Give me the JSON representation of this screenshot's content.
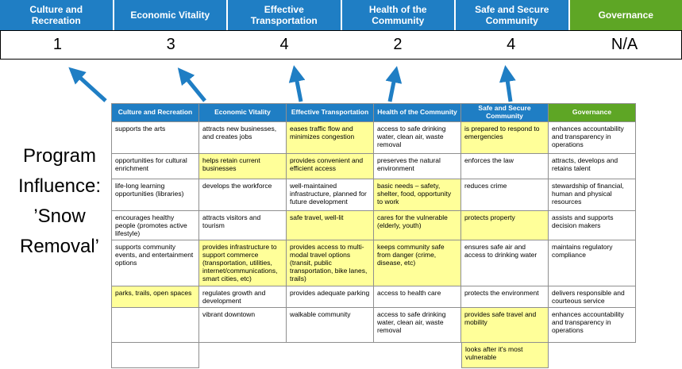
{
  "slide": {
    "program_label_lines": [
      "Program",
      "Influence:",
      "’Snow",
      "Removal’"
    ]
  },
  "colors": {
    "header_blue": "#1F7EC4",
    "header_green": "#5EA625",
    "highlight_yellow": "#FFFF99",
    "arrow_blue": "#1F7EC4",
    "score_text": "#000000"
  },
  "arrows": {
    "count": 5,
    "direction": "up",
    "color": "#1F7EC4"
  },
  "summary_banner": {
    "columns": [
      {
        "label": "Culture and Recreation",
        "score": "1",
        "style": "blue"
      },
      {
        "label": "Economic Vitality",
        "score": "3",
        "style": "blue"
      },
      {
        "label": "Effective Transportation",
        "score": "4",
        "style": "blue"
      },
      {
        "label": "Health of the Community",
        "score": "2",
        "style": "blue"
      },
      {
        "label": "Safe and Secure Community",
        "score": "4",
        "style": "blue"
      },
      {
        "label": "Governance",
        "score": "N/A",
        "style": "green"
      }
    ]
  },
  "matrix": {
    "headers": [
      {
        "label": "Culture and Recreation",
        "style": "blue"
      },
      {
        "label": "Economic Vitality",
        "style": "blue"
      },
      {
        "label": "Effective Transportation",
        "style": "blue"
      },
      {
        "label": "Health of the Community",
        "style": "blue"
      },
      {
        "label": "Safe and Secure Community",
        "style": "blue"
      },
      {
        "label": "Governance",
        "style": "green"
      }
    ],
    "rows": [
      [
        {
          "text": "supports the arts"
        },
        {
          "text": "attracts new businesses, and creates jobs"
        },
        {
          "text": "eases traffic flow and minimizes congestion",
          "highlight": true
        },
        {
          "text": "access to safe drinking water, clean air, waste removal"
        },
        {
          "text": "is prepared to respond to emergencies",
          "highlight": true
        },
        {
          "text": "enhances accountability and transparency in operations"
        }
      ],
      [
        {
          "text": "opportunities for cultural enrichment"
        },
        {
          "text": "helps retain current businesses",
          "highlight": true
        },
        {
          "text": "provides convenient and efficient access",
          "highlight": true
        },
        {
          "text": "preserves the natural environment"
        },
        {
          "text": "enforces the law"
        },
        {
          "text": "attracts, develops and retains talent"
        }
      ],
      [
        {
          "text": "life-long learning opportunities (libraries)"
        },
        {
          "text": "develops the workforce"
        },
        {
          "text": "well-maintained infrastructure, planned for future development"
        },
        {
          "text": "basic needs – safety, shelter, food, opportunity to work",
          "highlight": true
        },
        {
          "text": "reduces crime"
        },
        {
          "text": "stewardship of financial, human and physical resources"
        }
      ],
      [
        {
          "text": "encourages healthy people (promotes active lifestyle)"
        },
        {
          "text": "attracts visitors and tourism"
        },
        {
          "text": "safe travel, well-lit",
          "highlight": true
        },
        {
          "text": "cares for the vulnerable (elderly, youth)",
          "highlight": true
        },
        {
          "text": "protects property",
          "highlight": true
        },
        {
          "text": "assists and supports decision makers"
        }
      ],
      [
        {
          "text": "supports community events, and entertainment options"
        },
        {
          "text": "provides infrastructure to support commerce (transportation, utilities, internet/communications, smart cities, etc)",
          "highlight": true
        },
        {
          "text": "provides access to multi-modal travel options (transit, public transportation, bike lanes, trails)",
          "highlight": true
        },
        {
          "text": "keeps community safe from danger (crime, disease, etc)",
          "highlight": true
        },
        {
          "text": "ensures safe air and access to drinking water"
        },
        {
          "text": "maintains regulatory compliance"
        }
      ],
      [
        {
          "text": "parks, trails, open spaces",
          "highlight": true
        },
        {
          "text": "regulates growth and development"
        },
        {
          "text": "provides adequate parking"
        },
        {
          "text": "access to health care"
        },
        {
          "text": "protects the environment"
        },
        {
          "text": "delivers responsible and courteous service"
        }
      ],
      [
        {
          "text": ""
        },
        {
          "text": "vibrant downtown"
        },
        {
          "text": "walkable community"
        },
        {
          "text": "access to safe drinking water, clean air, waste removal"
        },
        {
          "text": "provides safe travel and mobility",
          "highlight": true
        },
        {
          "text": "enhances accountability and transparency in operations"
        }
      ],
      [
        {
          "text": ""
        },
        {
          "text": "",
          "blank": true
        },
        {
          "text": "",
          "blank": true
        },
        {
          "text": "",
          "blank": true
        },
        {
          "text": "looks after it's most vulnerable",
          "highlight": true
        },
        {
          "text": "",
          "blank": true
        }
      ]
    ]
  }
}
